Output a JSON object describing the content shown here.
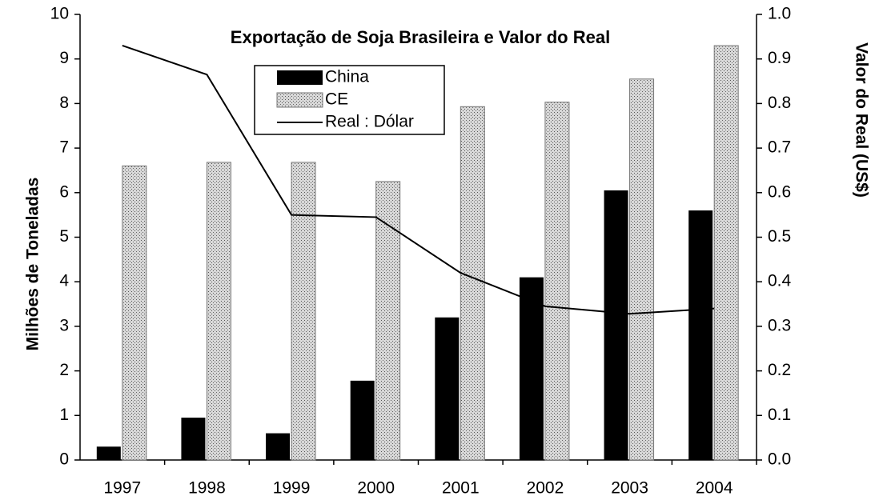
{
  "chart_data": {
    "type": "bar",
    "title": "Exportação de Soja Brasileira e Valor do Real",
    "y_label": "Milhões  de Toneladas",
    "y2_label": "Valor do Real (US$)",
    "categories": [
      "1997",
      "1998",
      "1999",
      "2000",
      "2001",
      "2002",
      "2003",
      "2004"
    ],
    "series": [
      {
        "name": "China",
        "color": "#000000",
        "values": [
          0.3,
          0.95,
          0.6,
          1.78,
          3.2,
          4.1,
          6.05,
          5.6
        ]
      },
      {
        "name": "CE",
        "color": "#b0b0b0",
        "values": [
          6.6,
          6.68,
          6.68,
          6.25,
          7.93,
          8.03,
          8.55,
          9.3
        ]
      },
      {
        "name": "Real : Dólar",
        "color": "#000000",
        "type": "line",
        "axis": "y2",
        "values": [
          0.93,
          0.865,
          0.55,
          0.545,
          0.42,
          0.345,
          0.328,
          0.34
        ]
      }
    ],
    "ylim": [
      0,
      10
    ],
    "yticks": [
      0,
      1,
      2,
      3,
      4,
      5,
      6,
      7,
      8,
      9,
      10
    ],
    "y2lim": [
      0,
      1
    ],
    "y2ticks": [
      {
        "value": 0,
        "label": "0.0"
      },
      0.1,
      0.2,
      0.3,
      0.4,
      0.5,
      0.6,
      0.7,
      0.8,
      0.9,
      {
        "value": 1,
        "label": "1.0"
      }
    ],
    "grid": false,
    "legend": "top"
  }
}
